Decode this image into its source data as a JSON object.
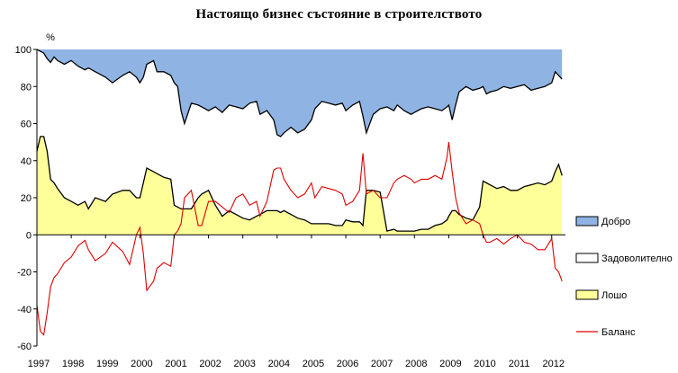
{
  "chart_data": {
    "type": "area",
    "title": "Настоящо бизнес състояние в строителството",
    "ylabel": "%",
    "xlabel": "",
    "ylim": [
      -60,
      100
    ],
    "yticks": [
      "100",
      "80",
      "60",
      "40",
      "20",
      "0",
      "-20",
      "-40",
      "-60"
    ],
    "xlim": [
      1997.0,
      2012.4
    ],
    "xticks": [
      "1997",
      "1998",
      "1999",
      "2000",
      "2001",
      "2002",
      "2003",
      "2004",
      "2005",
      "2006",
      "2007",
      "2008",
      "2009",
      "2010",
      "2011",
      "2012"
    ],
    "grid": false,
    "legend_position": "right",
    "legend": [
      {
        "key": "good",
        "label": "Добро"
      },
      {
        "key": "satisfactory",
        "label": "Задоволително"
      },
      {
        "key": "bad",
        "label": "Лошо"
      },
      {
        "key": "balance",
        "label": "Баланс"
      }
    ],
    "colors": {
      "good": "#8fb4e3",
      "satisfactory": "#ffffff",
      "bad": "#ffff99",
      "balance": "#dd0000",
      "boundary": "#000000"
    },
    "x": [
      1997.0,
      1997.1,
      1997.2,
      1997.3,
      1997.4,
      1997.5,
      1997.6,
      1997.8,
      1998.0,
      1998.2,
      1998.4,
      1998.5,
      1998.7,
      1999.0,
      1999.2,
      1999.5,
      1999.7,
      1999.9,
      2000.0,
      2000.1,
      2000.2,
      2000.4,
      2000.5,
      2000.7,
      2000.9,
      2001.0,
      2001.1,
      2001.2,
      2001.3,
      2001.5,
      2001.7,
      2001.8,
      2002.0,
      2002.2,
      2002.4,
      2002.6,
      2002.8,
      2003.0,
      2003.2,
      2003.4,
      2003.5,
      2003.7,
      2003.9,
      2004.0,
      2004.1,
      2004.2,
      2004.4,
      2004.6,
      2004.8,
      2005.0,
      2005.1,
      2005.3,
      2005.5,
      2005.7,
      2005.9,
      2006.0,
      2006.2,
      2006.4,
      2006.5,
      2006.6,
      2006.8,
      2007.0,
      2007.2,
      2007.4,
      2007.5,
      2007.7,
      2007.9,
      2008.0,
      2008.2,
      2008.4,
      2008.6,
      2008.8,
      2008.95,
      2009.0,
      2009.1,
      2009.2,
      2009.3,
      2009.5,
      2009.7,
      2009.9,
      2010.0,
      2010.1,
      2010.2,
      2010.4,
      2010.6,
      2010.8,
      2011.0,
      2011.2,
      2011.4,
      2011.6,
      2011.8,
      2012.0,
      2012.1,
      2012.2,
      2012.3
    ],
    "series": [
      {
        "key": "good_satisfactory_boundary",
        "values": [
          100,
          99,
          98,
          95,
          93,
          96,
          94,
          92,
          94,
          91,
          89,
          90,
          88,
          85,
          82,
          86,
          88,
          85,
          82,
          85,
          92,
          94,
          88,
          88,
          86,
          82,
          80,
          67,
          60,
          71,
          70,
          69,
          67,
          69,
          66,
          70,
          69,
          68,
          71,
          72,
          65,
          67,
          62,
          54,
          53,
          55,
          58,
          55,
          57,
          62,
          68,
          72,
          71,
          70,
          71,
          67,
          70,
          72,
          64,
          55,
          65,
          68,
          69,
          67,
          70,
          67,
          65,
          66,
          68,
          69,
          68,
          67,
          69,
          70,
          62,
          70,
          77,
          80,
          78,
          79,
          80,
          76,
          77,
          78,
          80,
          79,
          80,
          81,
          78,
          79,
          80,
          82,
          88,
          86,
          84
        ]
      },
      {
        "key": "satisfactory_bad_boundary",
        "values": [
          45,
          53,
          53,
          45,
          30,
          28,
          25,
          20,
          18,
          16,
          18,
          14,
          20,
          18,
          22,
          24,
          24,
          20,
          20,
          28,
          36,
          34,
          33,
          31,
          30,
          16,
          15,
          14,
          14,
          14,
          20,
          22,
          24,
          16,
          10,
          13,
          11,
          9,
          8,
          10,
          11,
          13,
          13,
          13,
          12,
          13,
          11,
          9,
          8,
          6,
          6,
          6,
          6,
          5,
          5,
          8,
          7,
          7,
          5,
          24,
          24,
          23,
          2,
          3,
          2,
          2,
          2,
          2,
          3,
          3,
          5,
          6,
          8,
          10,
          13,
          13,
          11,
          9,
          8,
          15,
          29,
          28,
          27,
          25,
          26,
          24,
          24,
          26,
          27,
          28,
          27,
          29,
          34,
          38,
          32
        ]
      },
      {
        "key": "balance",
        "name": "Баланс",
        "values": [
          -38,
          -52,
          -54,
          -42,
          -28,
          -23,
          -21,
          -15,
          -12,
          -6,
          -3,
          -8,
          -14,
          -10,
          -4,
          -9,
          -16,
          0,
          4,
          -10,
          -30,
          -25,
          -18,
          -15,
          -17,
          0,
          2,
          6,
          20,
          24,
          5,
          5,
          18,
          18,
          15,
          12,
          20,
          22,
          16,
          18,
          10,
          18,
          35,
          36,
          36,
          30,
          24,
          20,
          22,
          28,
          20,
          26,
          25,
          24,
          22,
          16,
          18,
          24,
          44,
          22,
          24,
          20,
          20,
          28,
          30,
          32,
          30,
          28,
          30,
          30,
          32,
          30,
          42,
          50,
          34,
          20,
          12,
          6,
          8,
          6,
          0,
          -4,
          -4,
          -2,
          -5,
          -2,
          0,
          -4,
          -5,
          -8,
          -8,
          -2,
          -18,
          -20,
          -25
        ]
      }
    ]
  }
}
